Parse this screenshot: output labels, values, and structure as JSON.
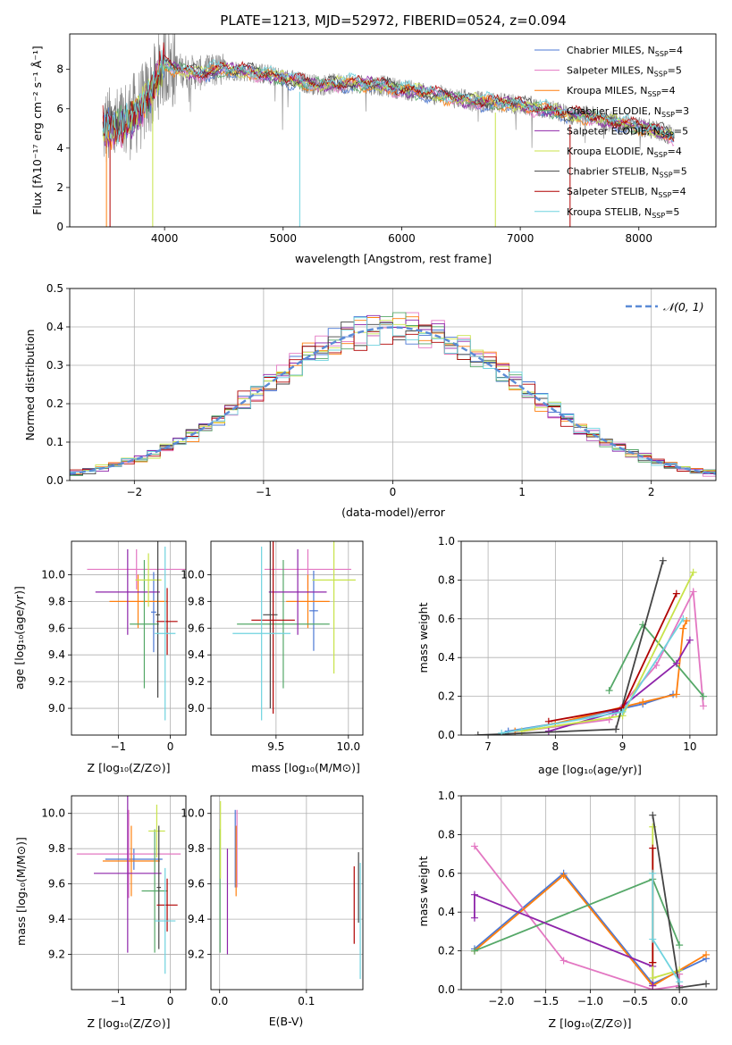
{
  "colors": {
    "Chabrier MILES": "#4c78d4",
    "Salpeter MILES": "#e377c2",
    "Kroupa MILES": "#ff7f0e",
    "Chabrier ELODIE": "#55a868",
    "Salpeter ELODIE": "#8e24aa",
    "Kroupa ELODIE": "#c8e34a",
    "Chabrier STELIB": "#444444",
    "Salpeter STELIB": "#b00000",
    "Kroupa STELIB": "#6fd3df",
    "spectrum": "#808080",
    "normal": "#5b8bd6"
  },
  "chart_data": [
    {
      "id": "spectrum",
      "type": "line",
      "title": "PLATE=1213, MJD=52972, FIBERID=0524, z=0.094",
      "xlabel": "wavelength [Angstrom, rest frame]",
      "ylabel": "Flux [fλ10⁻¹⁷ erg cm⁻² s⁻¹ Å⁻¹]",
      "xlim": [
        3200,
        8650
      ],
      "ylim": [
        0,
        9.8
      ],
      "xticks": [
        "4000",
        "5000",
        "6000",
        "7000",
        "8000"
      ],
      "yticks": [
        "0",
        "2",
        "4",
        "6",
        "8"
      ],
      "grid": false,
      "legend_position": "upper-right",
      "model_continuum": [
        [
          3480,
          5.0
        ],
        [
          3600,
          5.0
        ],
        [
          3700,
          5.5
        ],
        [
          3800,
          6.0
        ],
        [
          3900,
          7.0
        ],
        [
          4000,
          8.3
        ],
        [
          4100,
          8.0
        ],
        [
          4200,
          7.9
        ],
        [
          4300,
          7.8
        ],
        [
          4400,
          7.9
        ],
        [
          4500,
          8.0
        ],
        [
          4700,
          7.9
        ],
        [
          4900,
          7.7
        ],
        [
          5100,
          7.4
        ],
        [
          5300,
          7.2
        ],
        [
          5500,
          7.3
        ],
        [
          5800,
          7.2
        ],
        [
          6000,
          7.0
        ],
        [
          6200,
          6.8
        ],
        [
          6400,
          6.6
        ],
        [
          6600,
          6.4
        ],
        [
          6800,
          6.3
        ],
        [
          7000,
          6.2
        ],
        [
          7200,
          6.0
        ],
        [
          7400,
          5.7
        ],
        [
          7600,
          5.6
        ],
        [
          7800,
          5.3
        ],
        [
          8000,
          5.1
        ],
        [
          8200,
          4.8
        ],
        [
          8300,
          4.6
        ]
      ],
      "series": [
        {
          "name": "Chabrier MILES, N$_{SSP}$=4",
          "label": "Chabrier MILES, N",
          "sub": "SSP",
          "n": "=4"
        },
        {
          "name": "Salpeter MILES, N$_{SSP}$=5",
          "label": "Salpeter MILES, N",
          "sub": "SSP",
          "n": "=5"
        },
        {
          "name": "Kroupa MILES, N$_{SSP}$=4",
          "label": "Kroupa MILES, N",
          "sub": "SSP",
          "n": "=4"
        },
        {
          "name": "Chabrier ELODIE, N$_{SSP}$=3",
          "label": "Chabrier ELODIE, N",
          "sub": "SSP",
          "n": "=3"
        },
        {
          "name": "Salpeter ELODIE, N$_{SSP}$=5",
          "label": "Salpeter ELODIE, N",
          "sub": "SSP",
          "n": "=5"
        },
        {
          "name": "Kroupa ELODIE, N$_{SSP}$=4",
          "label": "Kroupa ELODIE, N",
          "sub": "SSP",
          "n": "=4"
        },
        {
          "name": "Chabrier STELIB, N$_{SSP}$=5",
          "label": "Chabrier STELIB, N",
          "sub": "SSP",
          "n": "=5"
        },
        {
          "name": "Salpeter STELIB, N$_{SSP}$=4",
          "label": "Salpeter STELIB, N",
          "sub": "SSP",
          "n": "=4"
        },
        {
          "name": "Kroupa STELIB, N$_{SSP}$=5",
          "label": "Kroupa STELIB, N",
          "sub": "SSP",
          "n": "=5"
        }
      ]
    },
    {
      "id": "residuals",
      "type": "histogram",
      "xlabel": "(data-model)/error",
      "ylabel": "Normed distribution",
      "xlim": [
        -2.5,
        2.5
      ],
      "ylim": [
        0,
        0.5
      ],
      "xticks": [
        "−2",
        "−1",
        "0",
        "1",
        "2"
      ],
      "yticks": [
        "0.0",
        "0.1",
        "0.2",
        "0.3",
        "0.4",
        "0.5"
      ],
      "grid": true,
      "legend_label": "𝒩(0, 1)",
      "bin_width": 0.1,
      "normal": {
        "mean": 0,
        "sigma": 1
      }
    },
    {
      "id": "age-vs-Z",
      "type": "errorbar",
      "xlabel": "Z [log₁₀(Z/Z⊙)]",
      "ylabel": "age  [log₁₀(age/yr)]",
      "xlim": [
        -1.9,
        0.3
      ],
      "ylim": [
        8.8,
        10.25
      ],
      "xticks": [
        "−1",
        "0"
      ],
      "xtick_values": [
        -1,
        0
      ],
      "yticks": [
        "9.0",
        "9.2",
        "9.4",
        "9.6",
        "9.8",
        "10.0"
      ],
      "ytick_values": [
        9.0,
        9.2,
        9.4,
        9.6,
        9.8,
        10.0
      ],
      "points": [
        {
          "model": "Chabrier MILES",
          "x": -0.32,
          "xerr": 0.05,
          "y": 9.72,
          "yerr": 0.3
        },
        {
          "model": "Salpeter MILES",
          "x": -0.65,
          "xerr": 0.95,
          "y": 10.04,
          "yerr": 0.15
        },
        {
          "model": "Kroupa MILES",
          "x": -0.62,
          "xerr": 0.55,
          "y": 9.8,
          "yerr": 0.2
        },
        {
          "model": "Chabrier ELODIE",
          "x": -0.5,
          "xerr": 0.28,
          "y": 9.63,
          "yerr": 0.48
        },
        {
          "model": "Salpeter ELODIE",
          "x": -0.82,
          "xerr": 0.62,
          "y": 9.87,
          "yerr": 0.32
        },
        {
          "model": "Kroupa ELODIE",
          "x": -0.42,
          "xerr": 0.25,
          "y": 9.96,
          "yerr": 0.2
        },
        {
          "model": "Chabrier STELIB",
          "x": -0.24,
          "xerr": 0.04,
          "y": 9.7,
          "yerr": 0.62
        },
        {
          "model": "Salpeter STELIB",
          "x": -0.06,
          "xerr": 0.2,
          "y": 9.65,
          "yerr": 0.25
        },
        {
          "model": "Kroupa STELIB",
          "x": -0.1,
          "xerr": 0.2,
          "y": 9.56,
          "yerr": 0.65
        }
      ]
    },
    {
      "id": "age-vs-mass",
      "type": "errorbar",
      "xlabel": "mass [log₁₀(M/M⊙)]",
      "ylabel": "",
      "xlim": [
        9.05,
        10.1
      ],
      "ylim": [
        8.8,
        10.25
      ],
      "xticks": [
        "9.5",
        "10.0"
      ],
      "xtick_values": [
        9.5,
        10.0
      ],
      "yticks": [
        "9.0",
        "9.2",
        "9.4",
        "9.6",
        "9.8",
        "10.0"
      ],
      "ytick_values": [
        9.0,
        9.2,
        9.4,
        9.6,
        9.8,
        10.0
      ],
      "points": [
        {
          "model": "Chabrier MILES",
          "x": 9.76,
          "xerr": 0.03,
          "y": 9.73,
          "yerr": 0.3
        },
        {
          "model": "Salpeter MILES",
          "x": 9.72,
          "xerr": 0.3,
          "y": 10.04,
          "yerr": 0.15
        },
        {
          "model": "Kroupa MILES",
          "x": 9.72,
          "xerr": 0.15,
          "y": 9.8,
          "yerr": 0.2
        },
        {
          "model": "Chabrier ELODIE",
          "x": 9.55,
          "xerr": 0.32,
          "y": 9.63,
          "yerr": 0.48
        },
        {
          "model": "Salpeter ELODIE",
          "x": 9.65,
          "xerr": 0.2,
          "y": 9.87,
          "yerr": 0.32
        },
        {
          "model": "Kroupa ELODIE",
          "x": 9.9,
          "xerr": 0.15,
          "y": 9.96,
          "yerr": 0.7
        },
        {
          "model": "Chabrier STELIB",
          "x": 9.46,
          "xerr": 0.05,
          "y": 9.7,
          "yerr": 0.7
        },
        {
          "model": "Salpeter STELIB",
          "x": 9.48,
          "xerr": 0.15,
          "y": 9.66,
          "yerr": 0.7
        },
        {
          "model": "Kroupa STELIB",
          "x": 9.4,
          "xerr": 0.2,
          "y": 9.56,
          "yerr": 0.65
        }
      ]
    },
    {
      "id": "weight-vs-age",
      "type": "line",
      "xlabel": "age  [log₁₀(age/yr)]",
      "ylabel": "mass weight",
      "xlim": [
        6.6,
        10.4
      ],
      "ylim": [
        0,
        1.0
      ],
      "xticks": [
        "7",
        "8",
        "9",
        "10"
      ],
      "xtick_values": [
        7,
        8,
        9,
        10
      ],
      "yticks": [
        "0.0",
        "0.2",
        "0.4",
        "0.6",
        "0.8",
        "1.0"
      ],
      "ytick_values": [
        0,
        0.2,
        0.4,
        0.6,
        0.8,
        1.0
      ],
      "grid": true,
      "series": [
        {
          "model": "Chabrier MILES",
          "x": [
            7.3,
            8.0,
            9.3,
            9.75
          ],
          "y": [
            0.02,
            0.06,
            0.16,
            0.21
          ]
        },
        {
          "model": "Salpeter MILES",
          "x": [
            7.5,
            8.8,
            9.5,
            10.05,
            10.2
          ],
          "y": [
            0.02,
            0.08,
            0.36,
            0.74,
            0.15
          ]
        },
        {
          "model": "Kroupa MILES",
          "x": [
            7.4,
            8.0,
            9.3,
            9.8,
            9.9,
            9.95
          ],
          "y": [
            0.02,
            0.06,
            0.17,
            0.21,
            0.55,
            0.59
          ]
        },
        {
          "model": "Chabrier ELODIE",
          "x": [
            8.8,
            9.3,
            10.2
          ],
          "y": [
            0.23,
            0.57,
            0.2
          ]
        },
        {
          "model": "Salpeter ELODIE",
          "x": [
            7.9,
            8.9,
            9.8,
            10.0
          ],
          "y": [
            0.02,
            0.12,
            0.37,
            0.49
          ]
        },
        {
          "model": "Kroupa ELODIE",
          "x": [
            7.5,
            9.0,
            10.05
          ],
          "y": [
            0.02,
            0.1,
            0.84
          ]
        },
        {
          "model": "Chabrier STELIB",
          "x": [
            6.85,
            8.9,
            9.6
          ],
          "y": [
            0.0,
            0.03,
            0.9
          ]
        },
        {
          "model": "Salpeter STELIB",
          "x": [
            7.9,
            9.0,
            9.8
          ],
          "y": [
            0.07,
            0.14,
            0.73
          ]
        },
        {
          "model": "Kroupa STELIB",
          "x": [
            7.2,
            9.0,
            9.9
          ],
          "y": [
            0.01,
            0.12,
            0.6
          ]
        }
      ]
    },
    {
      "id": "mass-vs-Z",
      "type": "errorbar",
      "xlabel": "Z [log₁₀(Z/Z⊙)]",
      "ylabel": "mass [log₁₀(M/M⊙)]",
      "xlim": [
        -1.9,
        0.3
      ],
      "ylim": [
        9.0,
        10.1
      ],
      "xticks": [
        "−1",
        "0"
      ],
      "xtick_values": [
        -1,
        0
      ],
      "yticks": [
        "9.2",
        "9.4",
        "9.6",
        "9.8",
        "10.0"
      ],
      "ytick_values": [
        9.2,
        9.4,
        9.6,
        9.8,
        10.0
      ],
      "points": [
        {
          "model": "Chabrier MILES",
          "x": -0.7,
          "xerr": 0.55,
          "y": 9.74,
          "yerr": 0.06
        },
        {
          "model": "Salpeter MILES",
          "x": -0.8,
          "xerr": 1.0,
          "y": 9.77,
          "yerr": 0.25
        },
        {
          "model": "Kroupa MILES",
          "x": -0.75,
          "xerr": 0.55,
          "y": 9.73,
          "yerr": 0.2
        },
        {
          "model": "Chabrier ELODIE",
          "x": -0.3,
          "xerr": 0.25,
          "y": 9.56,
          "yerr": 0.35
        },
        {
          "model": "Salpeter ELODIE",
          "x": -0.82,
          "xerr": 0.65,
          "y": 9.66,
          "yerr": 0.45
        },
        {
          "model": "Kroupa ELODIE",
          "x": -0.26,
          "xerr": 0.16,
          "y": 9.9,
          "yerr": 0.15
        },
        {
          "model": "Chabrier STELIB",
          "x": -0.22,
          "xerr": 0.04,
          "y": 9.58,
          "yerr": 0.35
        },
        {
          "model": "Salpeter STELIB",
          "x": -0.06,
          "xerr": 0.2,
          "y": 9.48,
          "yerr": 0.15
        },
        {
          "model": "Kroupa STELIB",
          "x": -0.1,
          "xerr": 0.2,
          "y": 9.39,
          "yerr": 0.3
        }
      ]
    },
    {
      "id": "mass-vs-ebv",
      "type": "errorbar",
      "xlabel": "E(B-V)",
      "ylabel": "",
      "xlim": [
        -0.01,
        0.165
      ],
      "ylim": [
        9.0,
        10.1
      ],
      "xticks": [
        "0.0",
        "0.1"
      ],
      "xtick_values": [
        0.0,
        0.1
      ],
      "yticks": [
        "9.2",
        "9.4",
        "9.6",
        "9.8",
        "10.0"
      ],
      "ytick_values": [
        9.2,
        9.4,
        9.6,
        9.8,
        10.0
      ],
      "points": [
        {
          "model": "Chabrier MILES",
          "x": 0.018,
          "xerr": 0,
          "y": 9.8,
          "yerr": 0.22
        },
        {
          "model": "Salpeter MILES",
          "x": 0.02,
          "xerr": 0,
          "y": 9.8,
          "yerr": 0.22
        },
        {
          "model": "Kroupa MILES",
          "x": 0.019,
          "xerr": 0,
          "y": 9.73,
          "yerr": 0.2
        },
        {
          "model": "Chabrier ELODIE",
          "x": 0.0005,
          "xerr": 0,
          "y": 9.56,
          "yerr": 0.35
        },
        {
          "model": "Salpeter ELODIE",
          "x": 0.009,
          "xerr": 0,
          "y": 9.5,
          "yerr": 0.3
        },
        {
          "model": "Kroupa ELODIE",
          "x": 0.001,
          "xerr": 0,
          "y": 9.85,
          "yerr": 0.22
        },
        {
          "model": "Chabrier STELIB",
          "x": 0.16,
          "xerr": 0,
          "y": 9.58,
          "yerr": 0.2
        },
        {
          "model": "Salpeter STELIB",
          "x": 0.155,
          "xerr": 0,
          "y": 9.48,
          "yerr": 0.22
        },
        {
          "model": "Kroupa STELIB",
          "x": 0.162,
          "xerr": 0,
          "y": 9.39,
          "yerr": 0.33
        }
      ]
    },
    {
      "id": "weight-vs-Z",
      "type": "line",
      "xlabel": "Z [log₁₀(Z/Z⊙)]",
      "ylabel": "mass weight",
      "xlim": [
        -2.45,
        0.42
      ],
      "ylim": [
        0,
        1.0
      ],
      "xticks": [
        "−2.0",
        "−1.5",
        "−1.0",
        "−0.5",
        "0.0"
      ],
      "xtick_values": [
        -2.0,
        -1.5,
        -1.0,
        -0.5,
        0.0
      ],
      "yticks": [
        "0.0",
        "0.2",
        "0.4",
        "0.6",
        "0.8",
        "1.0"
      ],
      "ytick_values": [
        0,
        0.2,
        0.4,
        0.6,
        0.8,
        1.0
      ],
      "grid": true,
      "series": [
        {
          "model": "Chabrier MILES",
          "x": [
            -2.3,
            -1.3,
            -0.3,
            0.3
          ],
          "y": [
            0.21,
            0.6,
            0.03,
            0.16
          ]
        },
        {
          "model": "Salpeter MILES",
          "x": [
            -2.3,
            -1.3,
            -0.3,
            0.0,
            0.0
          ],
          "y": [
            0.74,
            0.15,
            0.0,
            0.02,
            0.08
          ]
        },
        {
          "model": "Kroupa MILES",
          "x": [
            -2.3,
            -1.3,
            -0.3,
            0.3
          ],
          "y": [
            0.2,
            0.59,
            0.02,
            0.18
          ]
        },
        {
          "model": "Chabrier ELODIE",
          "x": [
            -2.3,
            -0.3,
            0.0
          ],
          "y": [
            0.2,
            0.57,
            0.23
          ]
        },
        {
          "model": "Salpeter ELODIE",
          "x": [
            -2.3,
            -2.3,
            -0.3,
            -0.3
          ],
          "y": [
            0.37,
            0.49,
            0.12,
            0.02
          ]
        },
        {
          "model": "Kroupa ELODIE",
          "x": [
            -0.3,
            -0.3,
            0.0
          ],
          "y": [
            0.84,
            0.06,
            0.1
          ]
        },
        {
          "model": "Chabrier STELIB",
          "x": [
            -0.3,
            0.0,
            0.3
          ],
          "y": [
            0.9,
            0.01,
            0.03
          ]
        },
        {
          "model": "Salpeter STELIB",
          "x": [
            -0.3,
            -0.3,
            -0.3
          ],
          "y": [
            0.73,
            0.14,
            0.14
          ]
        },
        {
          "model": "Kroupa STELIB",
          "x": [
            -0.3,
            -0.3,
            0.0
          ],
          "y": [
            0.6,
            0.26,
            0.04
          ]
        }
      ]
    }
  ]
}
